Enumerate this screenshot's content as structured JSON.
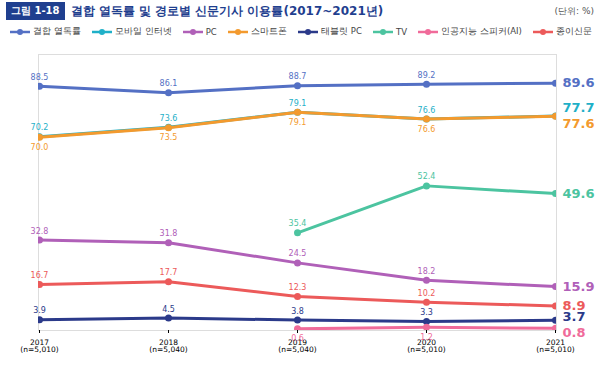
{
  "chart_data": {
    "type": "line",
    "figure_label": "그림 1-18",
    "title": "결합 열독률 및 경로별 신문기사 이용률(2017~2021년)",
    "ylabel": "(단위: %)",
    "categories": [
      "2017\n(n=5,010)",
      "2018\n(n=5,040)",
      "2019\n(n=5,040)",
      "2020\n(n=5,010)",
      "2021\n(n=5,010)"
    ],
    "series": [
      {
        "name": "결합 열독률",
        "color": "#5470c4",
        "values": [
          88.5,
          86.1,
          88.7,
          89.2,
          89.6
        ],
        "value_labels": [
          "88.5",
          "86.1",
          "88.7",
          "89.2",
          "89.6"
        ]
      },
      {
        "name": "모바일 인터넷",
        "color": "#1fb0c8",
        "values": [
          70.2,
          73.6,
          79.1,
          76.6,
          77.7
        ],
        "value_labels": [
          "70.2",
          "73.6",
          "79.1",
          "76.6",
          "77.7"
        ]
      },
      {
        "name": "PC",
        "color": "#b060b8",
        "values": [
          32.8,
          31.8,
          24.5,
          18.2,
          15.9
        ],
        "value_labels": [
          "32.8",
          "31.8",
          "24.5",
          "18.2",
          "15.9"
        ]
      },
      {
        "name": "스마트폰",
        "color": "#f39a2e",
        "values": [
          70.0,
          73.5,
          79.1,
          76.6,
          77.6
        ],
        "value_labels": [
          "70.0",
          "73.5",
          "79.1",
          "76.6",
          "77.6"
        ]
      },
      {
        "name": "태블릿 PC",
        "color": "#2b3a8a",
        "values": [
          3.9,
          4.5,
          3.8,
          3.3,
          3.7
        ],
        "value_labels": [
          "3.9",
          "4.5",
          "3.8",
          "3.3",
          "3.7"
        ]
      },
      {
        "name": "TV",
        "color": "#4cc4a0",
        "values": [
          null,
          null,
          35.4,
          52.4,
          49.6
        ],
        "value_labels": [
          null,
          null,
          "35.4",
          "52.4",
          "49.6"
        ]
      },
      {
        "name": "인공지능 스피커(AI)",
        "color": "#f06b9a",
        "values": [
          null,
          null,
          0.6,
          1.2,
          0.8
        ],
        "value_labels": [
          null,
          null,
          "0.6",
          "1.2",
          "0.8"
        ]
      },
      {
        "name": "종이신문",
        "color": "#ec5a5a",
        "values": [
          16.7,
          17.7,
          12.3,
          10.2,
          8.9
        ],
        "value_labels": [
          "16.7",
          "17.7",
          "12.3",
          "10.2",
          "8.9"
        ]
      }
    ],
    "ylim": [
      0,
      100
    ],
    "yticks": [],
    "tick_labels": "x",
    "grid": false,
    "legend": "top",
    "data_labels": true,
    "marker": "circle"
  }
}
